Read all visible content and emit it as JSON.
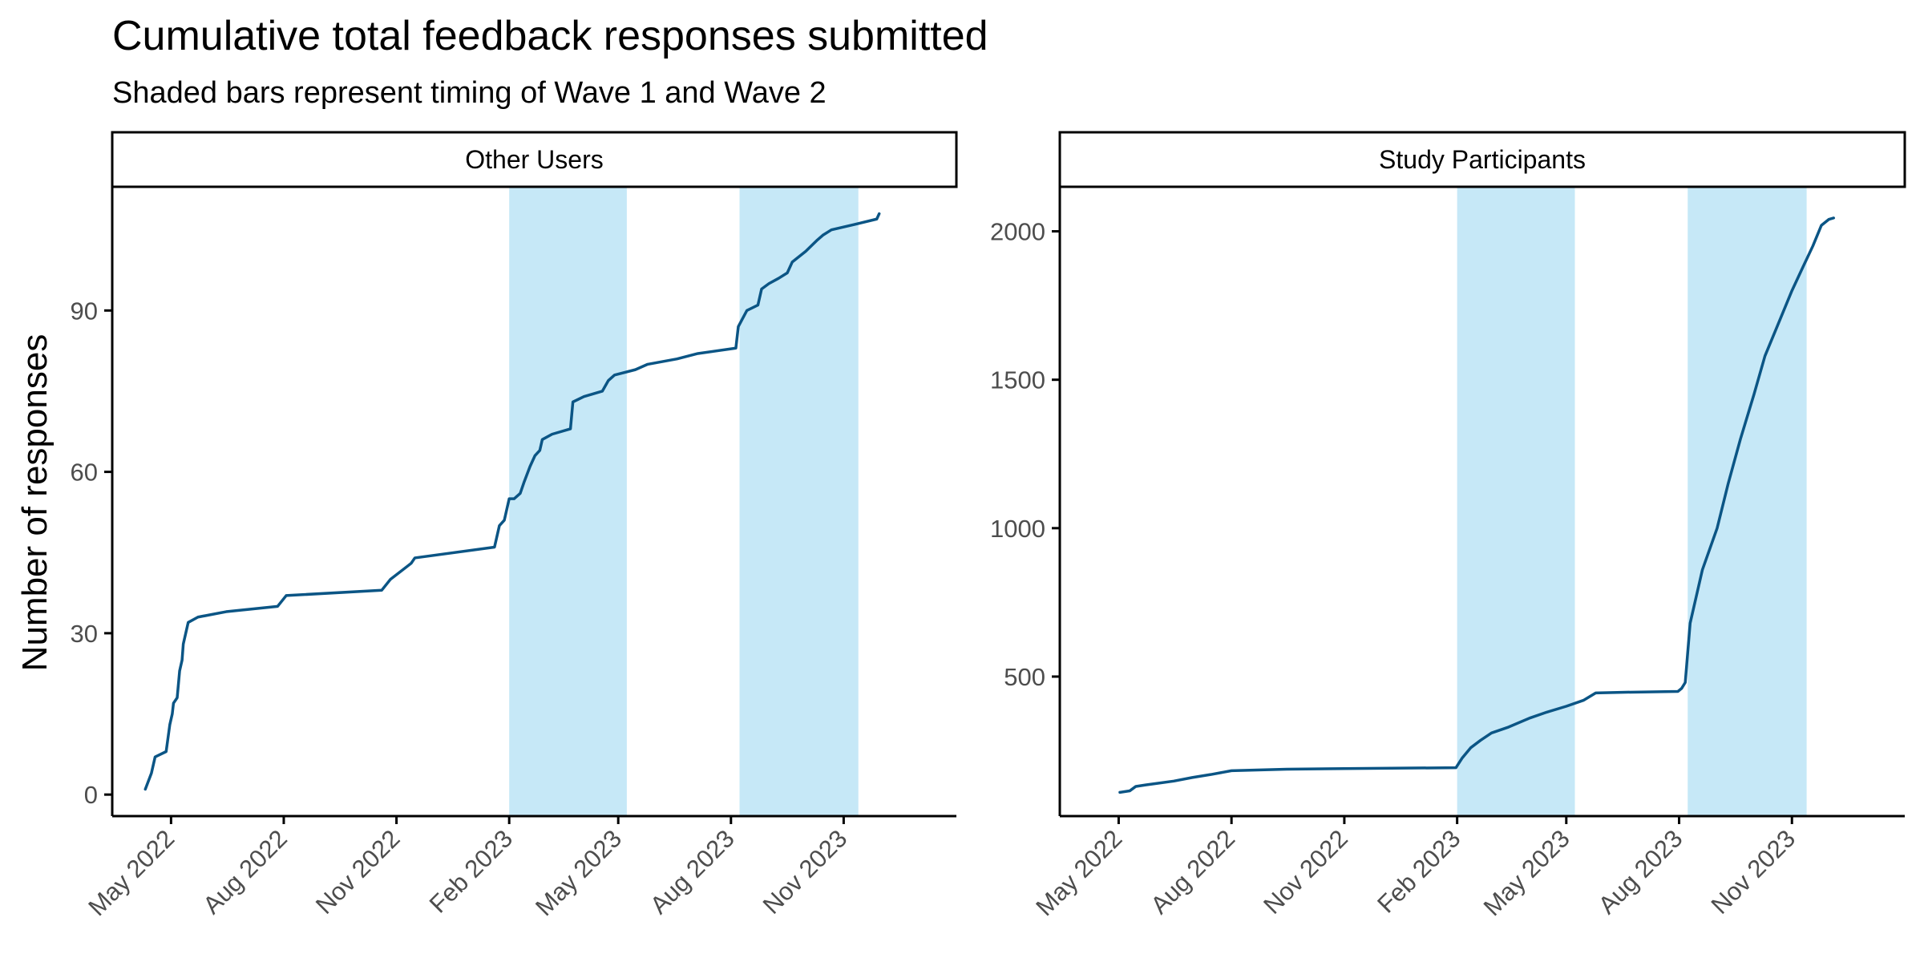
{
  "title": "Cumulative total feedback responses submitted",
  "subtitle": "Shaded bars represent timing of Wave 1 and Wave 2",
  "ylabel": "Number of responses",
  "colors": {
    "line": "#0b5585",
    "wave_band": "#c6e8f7"
  },
  "chart_data": [
    {
      "type": "line",
      "panel": "Other Users",
      "xlabel": "",
      "ylabel": "Number of responses",
      "xlim": [
        "2022-03-14",
        "2024-02-01"
      ],
      "ylim": [
        -4,
        113
      ],
      "y_ticks": [
        0,
        30,
        60,
        90
      ],
      "x_ticks": [
        {
          "date": "2022-05-01",
          "label": "May 2022"
        },
        {
          "date": "2022-08-01",
          "label": "Aug 2022"
        },
        {
          "date": "2022-11-01",
          "label": "Nov 2022"
        },
        {
          "date": "2023-02-01",
          "label": "Feb 2023"
        },
        {
          "date": "2023-05-01",
          "label": "May 2023"
        },
        {
          "date": "2023-08-01",
          "label": "Aug 2023"
        },
        {
          "date": "2023-11-01",
          "label": "Nov 2023"
        }
      ],
      "shaded_periods": [
        [
          "2023-02-01",
          "2023-05-08"
        ],
        [
          "2023-08-08",
          "2023-11-13"
        ]
      ],
      "grid": false,
      "points": [
        [
          "2022-04-10",
          1
        ],
        [
          "2022-04-15",
          4
        ],
        [
          "2022-04-18",
          7
        ],
        [
          "2022-04-27",
          8
        ],
        [
          "2022-04-30",
          13
        ],
        [
          "2022-05-02",
          15
        ],
        [
          "2022-05-03",
          17
        ],
        [
          "2022-05-06",
          18
        ],
        [
          "2022-05-08",
          23
        ],
        [
          "2022-05-10",
          25
        ],
        [
          "2022-05-11",
          28
        ],
        [
          "2022-05-15",
          32
        ],
        [
          "2022-05-23",
          33
        ],
        [
          "2022-06-15",
          34
        ],
        [
          "2022-07-27",
          35
        ],
        [
          "2022-08-03",
          37
        ],
        [
          "2022-10-20",
          38
        ],
        [
          "2022-10-27",
          40
        ],
        [
          "2022-11-13",
          43
        ],
        [
          "2022-11-16",
          44
        ],
        [
          "2023-01-20",
          46
        ],
        [
          "2023-01-24",
          50
        ],
        [
          "2023-01-28",
          51
        ],
        [
          "2023-02-01",
          55
        ],
        [
          "2023-02-05",
          55
        ],
        [
          "2023-02-10",
          56
        ],
        [
          "2023-02-13",
          58
        ],
        [
          "2023-02-18",
          61
        ],
        [
          "2023-02-22",
          63
        ],
        [
          "2023-02-26",
          64
        ],
        [
          "2023-02-28",
          66
        ],
        [
          "2023-03-08",
          67
        ],
        [
          "2023-03-23",
          68
        ],
        [
          "2023-03-25",
          73
        ],
        [
          "2023-04-03",
          74
        ],
        [
          "2023-04-18",
          75
        ],
        [
          "2023-04-23",
          77
        ],
        [
          "2023-04-28",
          78
        ],
        [
          "2023-05-15",
          79
        ],
        [
          "2023-05-25",
          80
        ],
        [
          "2023-06-18",
          81
        ],
        [
          "2023-07-05",
          82
        ],
        [
          "2023-08-05",
          83
        ],
        [
          "2023-08-07",
          87
        ],
        [
          "2023-08-14",
          90
        ],
        [
          "2023-08-23",
          91
        ],
        [
          "2023-08-26",
          94
        ],
        [
          "2023-09-01",
          95
        ],
        [
          "2023-09-09",
          96
        ],
        [
          "2023-09-16",
          97
        ],
        [
          "2023-09-20",
          99
        ],
        [
          "2023-10-01",
          101
        ],
        [
          "2023-10-10",
          103
        ],
        [
          "2023-10-15",
          104
        ],
        [
          "2023-10-22",
          105
        ],
        [
          "2023-11-10",
          106
        ],
        [
          "2023-11-28",
          107
        ],
        [
          "2023-11-30",
          108
        ]
      ]
    },
    {
      "type": "line",
      "panel": "Study Participants",
      "xlabel": "",
      "ylabel": "Number of responses",
      "xlim": [
        "2022-03-14",
        "2024-02-01"
      ],
      "ylim": [
        30,
        2150
      ],
      "y_ticks": [
        500,
        1000,
        1500,
        2000
      ],
      "x_ticks": [
        {
          "date": "2022-05-01",
          "label": "May 2022"
        },
        {
          "date": "2022-08-01",
          "label": "Aug 2022"
        },
        {
          "date": "2022-11-01",
          "label": "Nov 2022"
        },
        {
          "date": "2023-02-01",
          "label": "Feb 2023"
        },
        {
          "date": "2023-05-01",
          "label": "May 2023"
        },
        {
          "date": "2023-08-01",
          "label": "Aug 2023"
        },
        {
          "date": "2023-11-01",
          "label": "Nov 2023"
        }
      ],
      "shaded_periods": [
        [
          "2023-02-01",
          "2023-05-08"
        ],
        [
          "2023-08-08",
          "2023-11-13"
        ]
      ],
      "grid": false,
      "points": [
        [
          "2022-05-02",
          110
        ],
        [
          "2022-05-10",
          115
        ],
        [
          "2022-05-15",
          130
        ],
        [
          "2022-05-23",
          135
        ],
        [
          "2022-06-01",
          140
        ],
        [
          "2022-06-15",
          148
        ],
        [
          "2022-06-30",
          160
        ],
        [
          "2022-07-15",
          170
        ],
        [
          "2022-08-01",
          183
        ],
        [
          "2022-09-15",
          188
        ],
        [
          "2022-11-01",
          190
        ],
        [
          "2023-01-31",
          193
        ],
        [
          "2023-02-05",
          225
        ],
        [
          "2023-02-12",
          260
        ],
        [
          "2023-02-20",
          285
        ],
        [
          "2023-03-01",
          310
        ],
        [
          "2023-03-15",
          330
        ],
        [
          "2023-04-01",
          360
        ],
        [
          "2023-04-15",
          380
        ],
        [
          "2023-05-01",
          400
        ],
        [
          "2023-05-15",
          420
        ],
        [
          "2023-05-25",
          445
        ],
        [
          "2023-06-15",
          447
        ],
        [
          "2023-07-31",
          450
        ],
        [
          "2023-08-03",
          460
        ],
        [
          "2023-08-06",
          480
        ],
        [
          "2023-08-10",
          680
        ],
        [
          "2023-08-20",
          860
        ],
        [
          "2023-09-01",
          1000
        ],
        [
          "2023-09-10",
          1150
        ],
        [
          "2023-09-20",
          1300
        ],
        [
          "2023-10-01",
          1450
        ],
        [
          "2023-10-10",
          1580
        ],
        [
          "2023-10-20",
          1680
        ],
        [
          "2023-11-01",
          1800
        ],
        [
          "2023-11-10",
          1880
        ],
        [
          "2023-11-18",
          1950
        ],
        [
          "2023-11-25",
          2020
        ],
        [
          "2023-12-01",
          2040
        ],
        [
          "2023-12-05",
          2045
        ]
      ]
    }
  ]
}
